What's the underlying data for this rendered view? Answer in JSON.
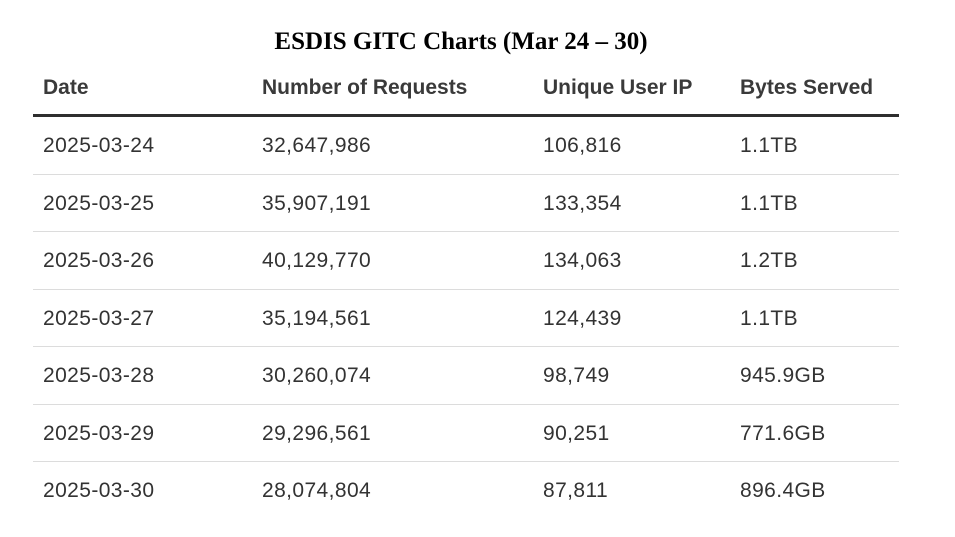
{
  "chart_data": {
    "type": "table",
    "title": "ESDIS GITC Charts (Mar 24 – 30)",
    "columns": [
      "Date",
      "Number of Requests",
      "Unique User IP",
      "Bytes Served"
    ],
    "rows": [
      [
        "2025-03-24",
        "32,647,986",
        "106,816",
        "1.1TB"
      ],
      [
        "2025-03-25",
        "35,907,191",
        "133,354",
        "1.1TB"
      ],
      [
        "2025-03-26",
        "40,129,770",
        "134,063",
        "1.2TB"
      ],
      [
        "2025-03-27",
        "35,194,561",
        "124,439",
        "1.1TB"
      ],
      [
        "2025-03-28",
        "30,260,074",
        "98,749",
        "945.9GB"
      ],
      [
        "2025-03-29",
        "29,296,561",
        "90,251",
        "771.6GB"
      ],
      [
        "2025-03-30",
        "28,074,804",
        "87,811",
        "896.4GB"
      ]
    ]
  }
}
